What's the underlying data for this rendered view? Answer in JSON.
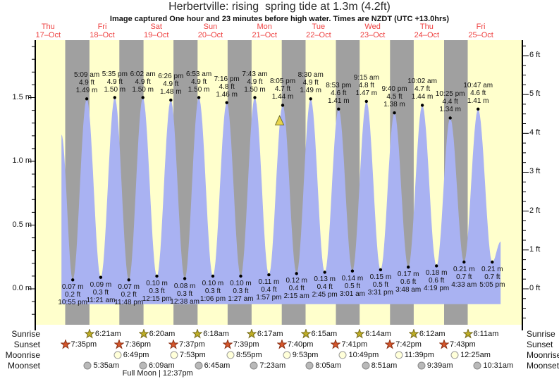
{
  "chart_data": {
    "type": "area",
    "title": "Herbertville: rising  spring tide at 1.3m (4.2ft)",
    "subtitle": "Image captured One hour and 23 minutes before high water. Times are NZDT (UTC +13.0hrs)",
    "days": [
      {
        "name": "Thu",
        "date": "17–Oct"
      },
      {
        "name": "Fri",
        "date": "18–Oct"
      },
      {
        "name": "Sat",
        "date": "19–Oct"
      },
      {
        "name": "Sun",
        "date": "20–Oct"
      },
      {
        "name": "Mon",
        "date": "21–Oct"
      },
      {
        "name": "Tue",
        "date": "22–Oct"
      },
      {
        "name": "Wed",
        "date": "23–Oct"
      },
      {
        "name": "Thu",
        "date": "24–Oct"
      },
      {
        "name": "Fri",
        "date": "25–Oct"
      }
    ],
    "y_axis_left": {
      "unit": "m",
      "tick_labels": [
        "0.0 m",
        "0.5 m",
        "1.0 m",
        "1.5 m"
      ],
      "tick_values": [
        0,
        0.5,
        1.0,
        1.5
      ]
    },
    "y_axis_right": {
      "unit": "ft",
      "tick_labels": [
        "0 ft",
        "1 ft",
        "2 ft",
        "3 ft",
        "4 ft",
        "5 ft",
        "6 ft"
      ],
      "tick_values": [
        0,
        1,
        2,
        3,
        4,
        5,
        6
      ]
    },
    "extremes": [
      {
        "type": "low",
        "d": 0,
        "t": "10:55 pm",
        "m": "0.07",
        "ft": "0.2"
      },
      {
        "type": "high",
        "d": 1,
        "t": "5:09 am",
        "m": "1.49",
        "ft": "4.9"
      },
      {
        "type": "low",
        "d": 1,
        "t": "11:21 am",
        "m": "0.09",
        "ft": "0.3"
      },
      {
        "type": "high",
        "d": 1,
        "t": "5:35 pm",
        "m": "1.50",
        "ft": "4.9"
      },
      {
        "type": "low",
        "d": 1,
        "t": "11:48 pm",
        "m": "0.07",
        "ft": "0.2"
      },
      {
        "type": "high",
        "d": 2,
        "t": "6:02 am",
        "m": "1.50",
        "ft": "4.9"
      },
      {
        "type": "low",
        "d": 2,
        "t": "12:15 pm",
        "m": "0.10",
        "ft": "0.3"
      },
      {
        "type": "high",
        "d": 2,
        "t": "6:26 pm",
        "m": "1.48",
        "ft": "4.9"
      },
      {
        "type": "low",
        "d": 3,
        "t": "12:38 am",
        "m": "0.08",
        "ft": "0.3"
      },
      {
        "type": "high",
        "d": 3,
        "t": "6:53 am",
        "m": "1.50",
        "ft": "4.9"
      },
      {
        "type": "low",
        "d": 3,
        "t": "1:06 pm",
        "m": "0.10",
        "ft": "0.3"
      },
      {
        "type": "high",
        "d": 3,
        "t": "7:16 pm",
        "m": "1.46",
        "ft": "4.8"
      },
      {
        "type": "low",
        "d": 4,
        "t": "1:27 am",
        "m": "0.10",
        "ft": "0.3"
      },
      {
        "type": "high",
        "d": 4,
        "t": "7:43 am",
        "m": "1.50",
        "ft": "4.9"
      },
      {
        "type": "low",
        "d": 4,
        "t": "1:57 pm",
        "m": "0.11",
        "ft": "0.4"
      },
      {
        "type": "high",
        "d": 4,
        "t": "8:05 pm",
        "m": "1.44",
        "ft": "4.7"
      },
      {
        "type": "low",
        "d": 5,
        "t": "2:15 am",
        "m": "0.12",
        "ft": "0.4"
      },
      {
        "type": "high",
        "d": 5,
        "t": "8:30 am",
        "m": "1.49",
        "ft": "4.9"
      },
      {
        "type": "low",
        "d": 5,
        "t": "2:45 pm",
        "m": "0.13",
        "ft": "0.4"
      },
      {
        "type": "high",
        "d": 5,
        "t": "8:53 pm",
        "m": "1.41",
        "ft": "4.6"
      },
      {
        "type": "low",
        "d": 6,
        "t": "3:01 am",
        "m": "0.14",
        "ft": "0.5"
      },
      {
        "type": "high",
        "d": 6,
        "t": "9:15 am",
        "m": "1.47",
        "ft": "4.8"
      },
      {
        "type": "low",
        "d": 6,
        "t": "3:31 pm",
        "m": "0.15",
        "ft": "0.5"
      },
      {
        "type": "high",
        "d": 6,
        "t": "9:40 pm",
        "m": "1.38",
        "ft": "4.5"
      },
      {
        "type": "low",
        "d": 7,
        "t": "3:48 am",
        "m": "0.17",
        "ft": "0.6"
      },
      {
        "type": "high",
        "d": 7,
        "t": "10:02 am",
        "m": "1.44",
        "ft": "4.7"
      },
      {
        "type": "low",
        "d": 7,
        "t": "4:19 pm",
        "m": "0.18",
        "ft": "0.6"
      },
      {
        "type": "high",
        "d": 7,
        "t": "10:25 pm",
        "m": "1.34",
        "ft": "4.4"
      },
      {
        "type": "low",
        "d": 8,
        "t": "4:33 am",
        "m": "0.21",
        "ft": "0.7"
      },
      {
        "type": "high",
        "d": 8,
        "t": "10:47 am",
        "m": "1.41",
        "ft": "4.6"
      },
      {
        "type": "low",
        "d": 8,
        "t": "5:05 pm",
        "m": "0.21",
        "ft": "0.7"
      }
    ],
    "curve": {
      "start": {
        "d": 0,
        "t": "5:55 pm",
        "h": 1.21
      },
      "end": {
        "d": 8,
        "t": "8:48 pm",
        "h": 0.37
      },
      "base_m": -0.12
    },
    "now_marker": {
      "d": 4,
      "t": "6:42 pm"
    }
  },
  "astro": {
    "rows": [
      {
        "id": "sunrise",
        "label": "Sunrise",
        "icon": "star",
        "fill": "#bfae25",
        "stroke": "#756a18",
        "events": [
          {
            "d": 1,
            "t": "6:21am"
          },
          {
            "d": 2,
            "t": "6:20am"
          },
          {
            "d": 3,
            "t": "6:18am"
          },
          {
            "d": 4,
            "t": "6:17am"
          },
          {
            "d": 5,
            "t": "6:15am"
          },
          {
            "d": 6,
            "t": "6:14am"
          },
          {
            "d": 7,
            "t": "6:12am"
          },
          {
            "d": 8,
            "t": "6:11am"
          }
        ]
      },
      {
        "id": "sunset",
        "label": "Sunset",
        "icon": "star",
        "fill": "#d4552a",
        "stroke": "#8a2f14",
        "events": [
          {
            "d": 0,
            "t": "7:35pm"
          },
          {
            "d": 1,
            "t": "7:36pm"
          },
          {
            "d": 2,
            "t": "7:37pm"
          },
          {
            "d": 3,
            "t": "7:39pm"
          },
          {
            "d": 4,
            "t": "7:40pm"
          },
          {
            "d": 5,
            "t": "7:41pm"
          },
          {
            "d": 6,
            "t": "7:42pm"
          },
          {
            "d": 7,
            "t": "7:43pm"
          }
        ]
      },
      {
        "id": "moonrise",
        "label": "Moonrise",
        "icon": "circle",
        "fill": "#ffffd9",
        "stroke": "#999999",
        "events": [
          {
            "d": 1,
            "t": "6:49pm"
          },
          {
            "d": 2,
            "t": "7:53pm"
          },
          {
            "d": 3,
            "t": "8:55pm"
          },
          {
            "d": 4,
            "t": "9:53pm"
          },
          {
            "d": 5,
            "t": "10:49pm"
          },
          {
            "d": 6,
            "t": "11:39pm"
          },
          {
            "d": 8,
            "t": "12:25am"
          }
        ]
      },
      {
        "id": "moonset",
        "label": "Moonset",
        "icon": "circle",
        "fill": "#b9b9b9",
        "stroke": "#878787",
        "events": [
          {
            "d": 1,
            "t": "5:35am"
          },
          {
            "d": 2,
            "t": "6:09am"
          },
          {
            "d": 3,
            "t": "6:45am"
          },
          {
            "d": 4,
            "t": "7:23am"
          },
          {
            "d": 5,
            "t": "8:05am"
          },
          {
            "d": 6,
            "t": "8:51am"
          },
          {
            "d": 7,
            "t": "9:39am"
          },
          {
            "d": 8,
            "t": "10:31am"
          }
        ]
      }
    ],
    "full_moon": "Full Moon | 12:37pm",
    "full_moon_pos": {
      "d": 2,
      "t": "12:37pm"
    }
  },
  "colors": {
    "day_band": "#ffffcc",
    "night_band": "#a0a0a0",
    "tide_fill": "#a9b2f2",
    "day_label_red": "#ee4040",
    "marker_fill": "#e8d44a",
    "marker_stroke": "#6f6f2a"
  }
}
